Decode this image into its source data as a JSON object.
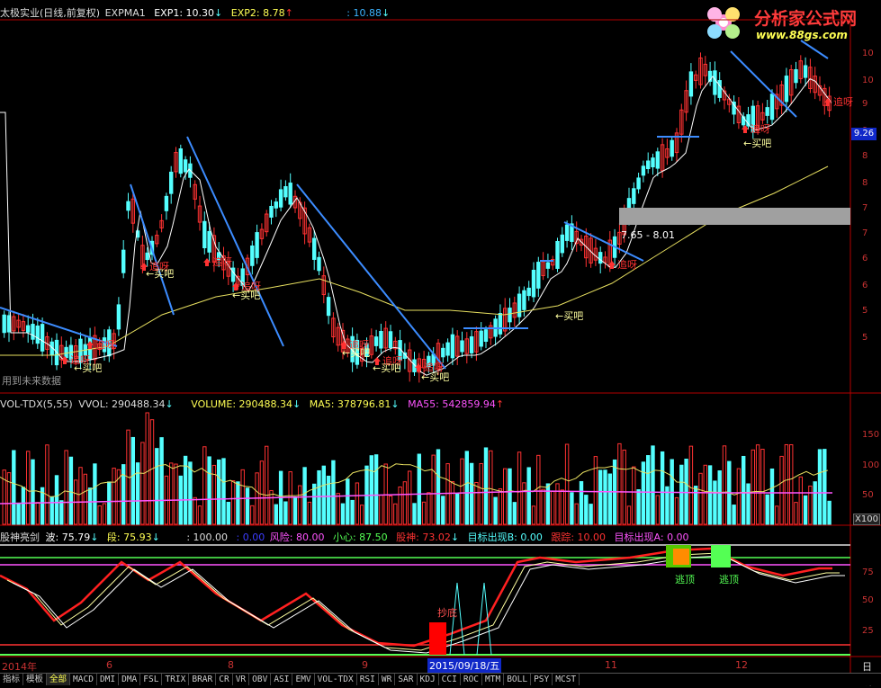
{
  "main_header": {
    "title": "太极实业(日线,前复权)",
    "indicator": "EXPMA1",
    "exp1": "EXP1: 10.30",
    "exp1_arrow": "↓",
    "exp2": "EXP2: 8.78",
    "exp2_arrow": "↑",
    "exp3": ": 10.88",
    "exp3_arrow": "↓"
  },
  "logo": {
    "name": "分析家公式网",
    "url": "www.88gs.com"
  },
  "current_price": "9.26",
  "range_label": "7.65 - 8.01",
  "future_data": "用到未来数据",
  "price_axis": [
    "10",
    "10",
    "9",
    "9",
    "8",
    "8",
    "7",
    "7",
    "6",
    "6",
    "5",
    "5"
  ],
  "signal_labels": {
    "buy": "买吧",
    "buy_arrow": "←买吧",
    "chase": "追呀"
  },
  "vol_header": {
    "name": "VOL-TDX(5,55)",
    "vvol": "VVOL: 290488.34",
    "vvol_arrow": "↓",
    "volume": "VOLUME: 290488.34",
    "volume_arrow": "↓",
    "ma5": "MA5: 378796.81",
    "ma5_arrow": "↓",
    "ma55": "MA55: 542859.94",
    "ma55_arrow": "↑"
  },
  "vol_axis": [
    "150",
    "100",
    "50"
  ],
  "vol_unit": "X100",
  "osc_header": {
    "name": "股神亮剑",
    "wave": "波: 75.79",
    "wave_arrow": "↓",
    "segment": "段: 75.93",
    "segment_arrow": "↓",
    "hundred": ": 100.00",
    "zero": ": 0.00",
    "risk": "风险: 80.00",
    "careful": "小心: 87.50",
    "god": "股神: 73.02",
    "god_arrow": "↓",
    "target_b": "目标出现B: 0.00",
    "track": "跟踪: 10.00",
    "target_a": "目标出现A: 0.00"
  },
  "osc_axis": [
    "75",
    "50",
    "25"
  ],
  "osc_labels": {
    "bottom": "抄底",
    "escape1": "逃顶",
    "escape2": "逃顶"
  },
  "time_axis": {
    "year": "2014年",
    "months": [
      "6",
      "8",
      "9",
      "11",
      "12"
    ],
    "cursor_date": "2015/09/18/五",
    "right_label": "日线"
  },
  "tabs": [
    "指标",
    "模板",
    "全部",
    "MACD",
    "DMI",
    "DMA",
    "FSL",
    "TRIX",
    "BRAR",
    "CR",
    "VR",
    "OBV",
    "ASI",
    "EMV",
    "VOL-TDX",
    "RSI",
    "WR",
    "SAR",
    "KDJ",
    "CCI",
    "ROC",
    "MTM",
    "BOLL",
    "PSY",
    "MCST"
  ],
  "colors": {
    "up_candle": "#ff3232",
    "down_candle": "#54ffff",
    "trend_line": "#3c8cff",
    "exp1_line": "#ffffff",
    "exp2_line": "#e8e060",
    "ma55_line": "#ff54ff",
    "grid": "#b40000"
  }
}
